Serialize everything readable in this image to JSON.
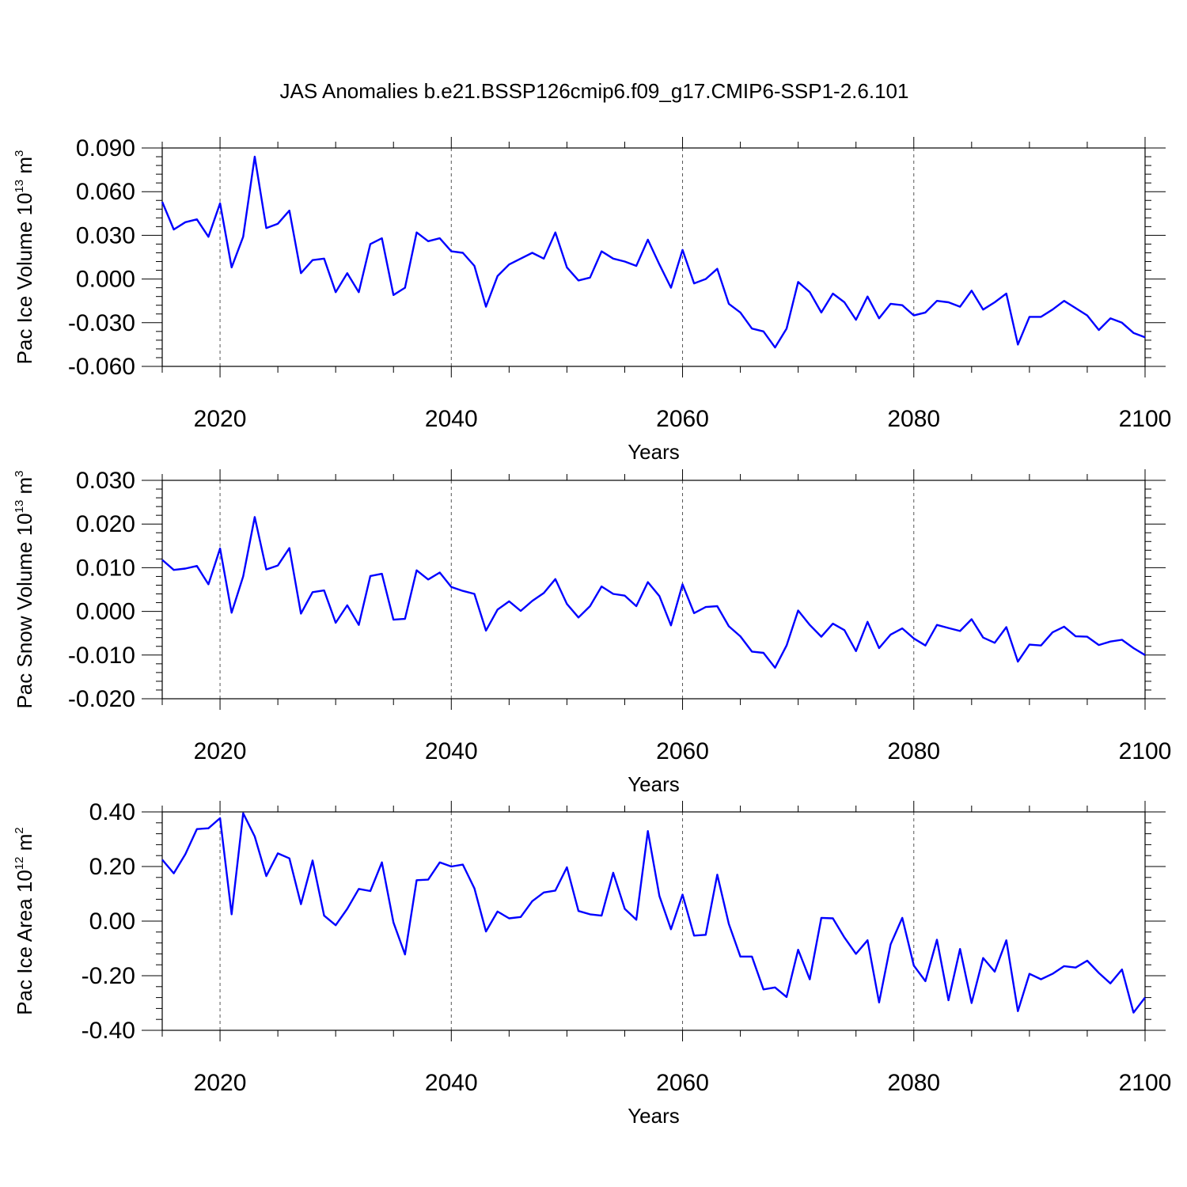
{
  "title": "JAS Anomalies b.e21.BSSP126cmip6.f09_g17.CMIP6-SSP1-2.6.101",
  "colors": {
    "series": "#0000ff",
    "axes": "#000000",
    "grid": "#555555"
  },
  "chart_data": [
    {
      "type": "line",
      "ylabel": {
        "base": "Pac Ice Volume 10",
        "exp1": "13",
        "mid": " m",
        "exp2": "3"
      },
      "xlabel": "Years",
      "xlim": [
        2015,
        2100
      ],
      "ylim": [
        -0.06,
        0.09
      ],
      "yticks": [
        -0.06,
        -0.03,
        0.0,
        0.03,
        0.06,
        0.09
      ],
      "ytick_labels": [
        "-0.060",
        "-0.030",
        "0.000",
        "0.030",
        "0.060",
        "0.090"
      ],
      "xticks": [
        2020,
        2040,
        2060,
        2080,
        2100
      ],
      "xtick_labels": [
        "2020",
        "2040",
        "2060",
        "2080",
        "2100"
      ],
      "grid": "vertical dashed at major x ticks",
      "series": [
        {
          "x_start": 2015,
          "values": [
            0.053,
            0.034,
            0.039,
            0.041,
            0.029,
            0.052,
            0.008,
            0.029,
            0.084,
            0.035,
            0.038,
            0.047,
            0.004,
            0.013,
            0.014,
            -0.009,
            0.004,
            -0.009,
            0.024,
            0.028,
            -0.011,
            -0.006,
            0.032,
            0.026,
            0.028,
            0.019,
            0.018,
            0.009,
            -0.019,
            0.002,
            0.01,
            0.014,
            0.018,
            0.014,
            0.032,
            0.008,
            -0.001,
            0.001,
            0.019,
            0.014,
            0.012,
            0.009,
            0.027,
            0.01,
            -0.006,
            0.02,
            -0.003,
            0.0,
            0.007,
            -0.017,
            -0.023,
            -0.034,
            -0.036,
            -0.047,
            -0.034,
            -0.002,
            -0.009,
            -0.023,
            -0.01,
            -0.016,
            -0.028,
            -0.012,
            -0.027,
            -0.017,
            -0.018,
            -0.025,
            -0.023,
            -0.015,
            -0.016,
            -0.019,
            -0.008,
            -0.021,
            -0.016,
            -0.01,
            -0.045,
            -0.026,
            -0.026,
            -0.021,
            -0.015,
            -0.02,
            -0.025,
            -0.035,
            -0.027,
            -0.03,
            -0.037,
            -0.04
          ]
        }
      ]
    },
    {
      "type": "line",
      "ylabel": {
        "base": "Pac Snow Volume 10",
        "exp1": "13",
        "mid": " m",
        "exp2": "3"
      },
      "xlabel": "Years",
      "xlim": [
        2015,
        2100
      ],
      "ylim": [
        -0.02,
        0.03
      ],
      "yticks": [
        -0.02,
        -0.01,
        0.0,
        0.01,
        0.02,
        0.03
      ],
      "ytick_labels": [
        "-0.020",
        "-0.010",
        "0.000",
        "0.010",
        "0.020",
        "0.030"
      ],
      "xticks": [
        2020,
        2040,
        2060,
        2080,
        2100
      ],
      "xtick_labels": [
        "2020",
        "2040",
        "2060",
        "2080",
        "2100"
      ],
      "grid": "vertical dashed at major x ticks",
      "series": [
        {
          "x_start": 2015,
          "values": [
            0.0118,
            0.0095,
            0.0098,
            0.0104,
            0.0062,
            0.0144,
            -0.0003,
            0.008,
            0.0216,
            0.0096,
            0.0105,
            0.0145,
            -0.0005,
            0.0044,
            0.0048,
            -0.0026,
            0.0014,
            -0.0031,
            0.0081,
            0.0086,
            -0.0019,
            -0.0017,
            0.0094,
            0.0073,
            0.0089,
            0.0056,
            0.0047,
            0.004,
            -0.0044,
            0.0004,
            0.0023,
            0.0001,
            0.0024,
            0.0042,
            0.0074,
            0.0017,
            -0.0014,
            0.0012,
            0.0057,
            0.004,
            0.0036,
            0.0012,
            0.0067,
            0.0035,
            -0.0032,
            0.0062,
            -0.0004,
            0.001,
            0.0012,
            -0.0034,
            -0.0057,
            -0.0092,
            -0.0095,
            -0.0129,
            -0.0078,
            0.0002,
            -0.0031,
            -0.0058,
            -0.0028,
            -0.0043,
            -0.0091,
            -0.0024,
            -0.0084,
            -0.0053,
            -0.0039,
            -0.0062,
            -0.0078,
            -0.0031,
            -0.0038,
            -0.0045,
            -0.0018,
            -0.006,
            -0.0072,
            -0.0036,
            -0.0115,
            -0.0076,
            -0.0078,
            -0.0048,
            -0.0035,
            -0.0057,
            -0.0058,
            -0.0077,
            -0.0069,
            -0.0065,
            -0.0084,
            -0.01
          ]
        }
      ]
    },
    {
      "type": "line",
      "ylabel": {
        "base": "Pac Ice Area 10",
        "exp1": "12",
        "mid": " m",
        "exp2": "2"
      },
      "xlabel": "Years",
      "xlim": [
        2015,
        2100
      ],
      "ylim": [
        -0.4,
        0.4
      ],
      "yticks": [
        -0.4,
        -0.2,
        0.0,
        0.2,
        0.4
      ],
      "ytick_labels": [
        "-0.40",
        "-0.20",
        "0.00",
        "0.20",
        "0.40"
      ],
      "xticks": [
        2020,
        2040,
        2060,
        2080,
        2100
      ],
      "xtick_labels": [
        "2020",
        "2040",
        "2060",
        "2080",
        "2100"
      ],
      "grid": "vertical dashed at major x ticks",
      "series": [
        {
          "x_start": 2015,
          "values": [
            0.225,
            0.175,
            0.245,
            0.337,
            0.34,
            0.377,
            0.025,
            0.395,
            0.31,
            0.165,
            0.248,
            0.23,
            0.062,
            0.222,
            0.02,
            -0.015,
            0.045,
            0.118,
            0.11,
            0.215,
            -0.005,
            -0.122,
            0.15,
            0.152,
            0.215,
            0.2,
            0.207,
            0.12,
            -0.038,
            0.035,
            0.01,
            0.015,
            0.073,
            0.105,
            0.112,
            0.197,
            0.037,
            0.025,
            0.02,
            0.177,
            0.045,
            0.005,
            0.33,
            0.092,
            -0.03,
            0.097,
            -0.053,
            -0.05,
            0.17,
            -0.01,
            -0.13,
            -0.13,
            -0.25,
            -0.243,
            -0.278,
            -0.105,
            -0.213,
            0.012,
            0.01,
            -0.06,
            -0.12,
            -0.07,
            -0.298,
            -0.085,
            0.012,
            -0.163,
            -0.22,
            -0.068,
            -0.29,
            -0.102,
            -0.3,
            -0.135,
            -0.185,
            -0.07,
            -0.33,
            -0.193,
            -0.213,
            -0.193,
            -0.165,
            -0.17,
            -0.145,
            -0.19,
            -0.228,
            -0.177,
            -0.335,
            -0.28
          ]
        }
      ]
    }
  ]
}
